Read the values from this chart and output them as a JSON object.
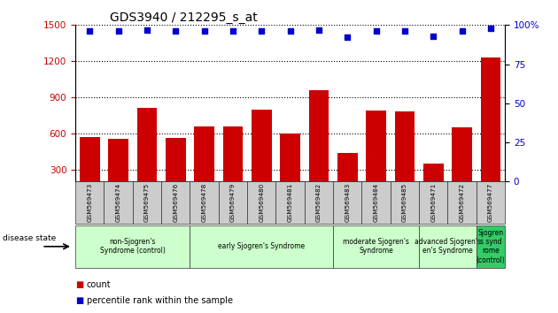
{
  "title": "GDS3940 / 212295_s_at",
  "samples": [
    "GSM569473",
    "GSM569474",
    "GSM569475",
    "GSM569476",
    "GSM569478",
    "GSM569479",
    "GSM569480",
    "GSM569481",
    "GSM569482",
    "GSM569483",
    "GSM569484",
    "GSM569485",
    "GSM569471",
    "GSM569472",
    "GSM569477"
  ],
  "counts": [
    570,
    555,
    810,
    560,
    660,
    660,
    800,
    600,
    960,
    440,
    790,
    785,
    350,
    650,
    1230
  ],
  "percentile": [
    96,
    96,
    97,
    96,
    96,
    96,
    96,
    96,
    97,
    92,
    96,
    96,
    93,
    96,
    98
  ],
  "bar_color": "#cc0000",
  "dot_color": "#0000cc",
  "ylim_left": [
    200,
    1500
  ],
  "ylim_right": [
    0,
    100
  ],
  "yticks_left": [
    300,
    600,
    900,
    1200,
    1500
  ],
  "yticks_right": [
    0,
    25,
    50,
    75,
    100
  ],
  "groups": [
    {
      "label": "non-Sjogren's\nSyndrome (control)",
      "start": 0,
      "end": 4,
      "color": "#ccffcc"
    },
    {
      "label": "early Sjogren's Syndrome",
      "start": 4,
      "end": 9,
      "color": "#ccffcc"
    },
    {
      "label": "moderate Sjogren's\nSyndrome",
      "start": 9,
      "end": 12,
      "color": "#ccffcc"
    },
    {
      "label": "advanced Sjogren's\nen's Syndrome",
      "start": 12,
      "end": 14,
      "color": "#ccffcc"
    },
    {
      "label": "Sjogren\ns synd\nrome\n(control)",
      "start": 14,
      "end": 15,
      "color": "#33cc66"
    }
  ],
  "disease_state_label": "disease state",
  "legend_count_label": "count",
  "legend_percentile_label": "percentile rank within the sample",
  "background_color": "#ffffff",
  "axis_label_color_left": "#cc0000",
  "axis_label_color_right": "#0000cc",
  "bar_width": 0.7,
  "tick_box_color": "#cccccc",
  "right_ytick_labels": [
    "0",
    "25",
    "50",
    "75",
    "100%"
  ]
}
